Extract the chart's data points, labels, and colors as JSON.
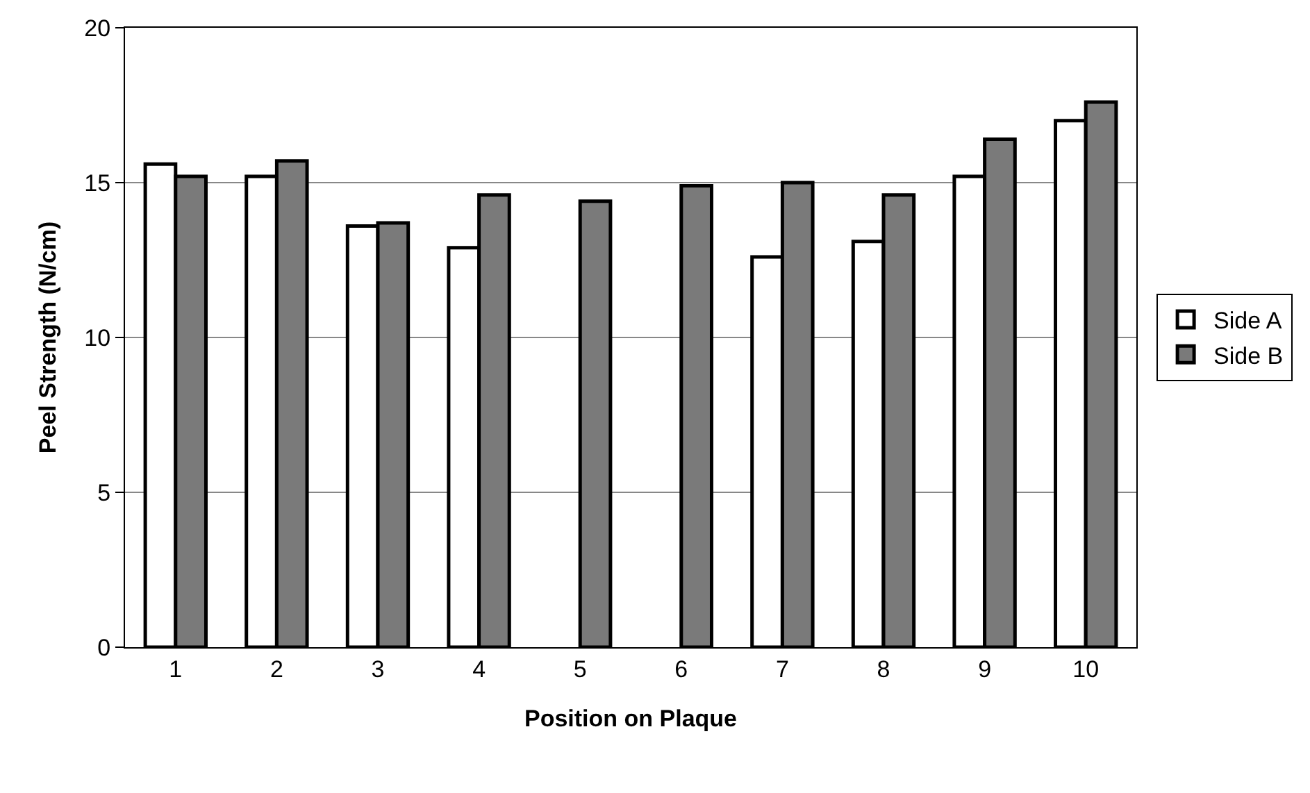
{
  "chart_data": {
    "type": "bar",
    "xlabel": "Position on Plaque",
    "ylabel": "Peel Strength (N/cm)",
    "categories": [
      "1",
      "2",
      "3",
      "4",
      "5",
      "6",
      "7",
      "8",
      "9",
      "10"
    ],
    "series": [
      {
        "name": "Side A",
        "color": "#ffffff",
        "values": [
          15.6,
          15.2,
          13.6,
          12.9,
          null,
          null,
          12.6,
          13.1,
          15.2,
          17.0
        ]
      },
      {
        "name": "Side B",
        "color": "#7a7a7a",
        "values": [
          15.2,
          15.7,
          13.7,
          14.6,
          14.4,
          14.9,
          15.0,
          14.6,
          16.4,
          17.6
        ]
      }
    ],
    "ylim": [
      0,
      20
    ],
    "yticks": [
      0,
      5,
      10,
      15,
      20
    ],
    "grid": "y",
    "legend": "right"
  }
}
